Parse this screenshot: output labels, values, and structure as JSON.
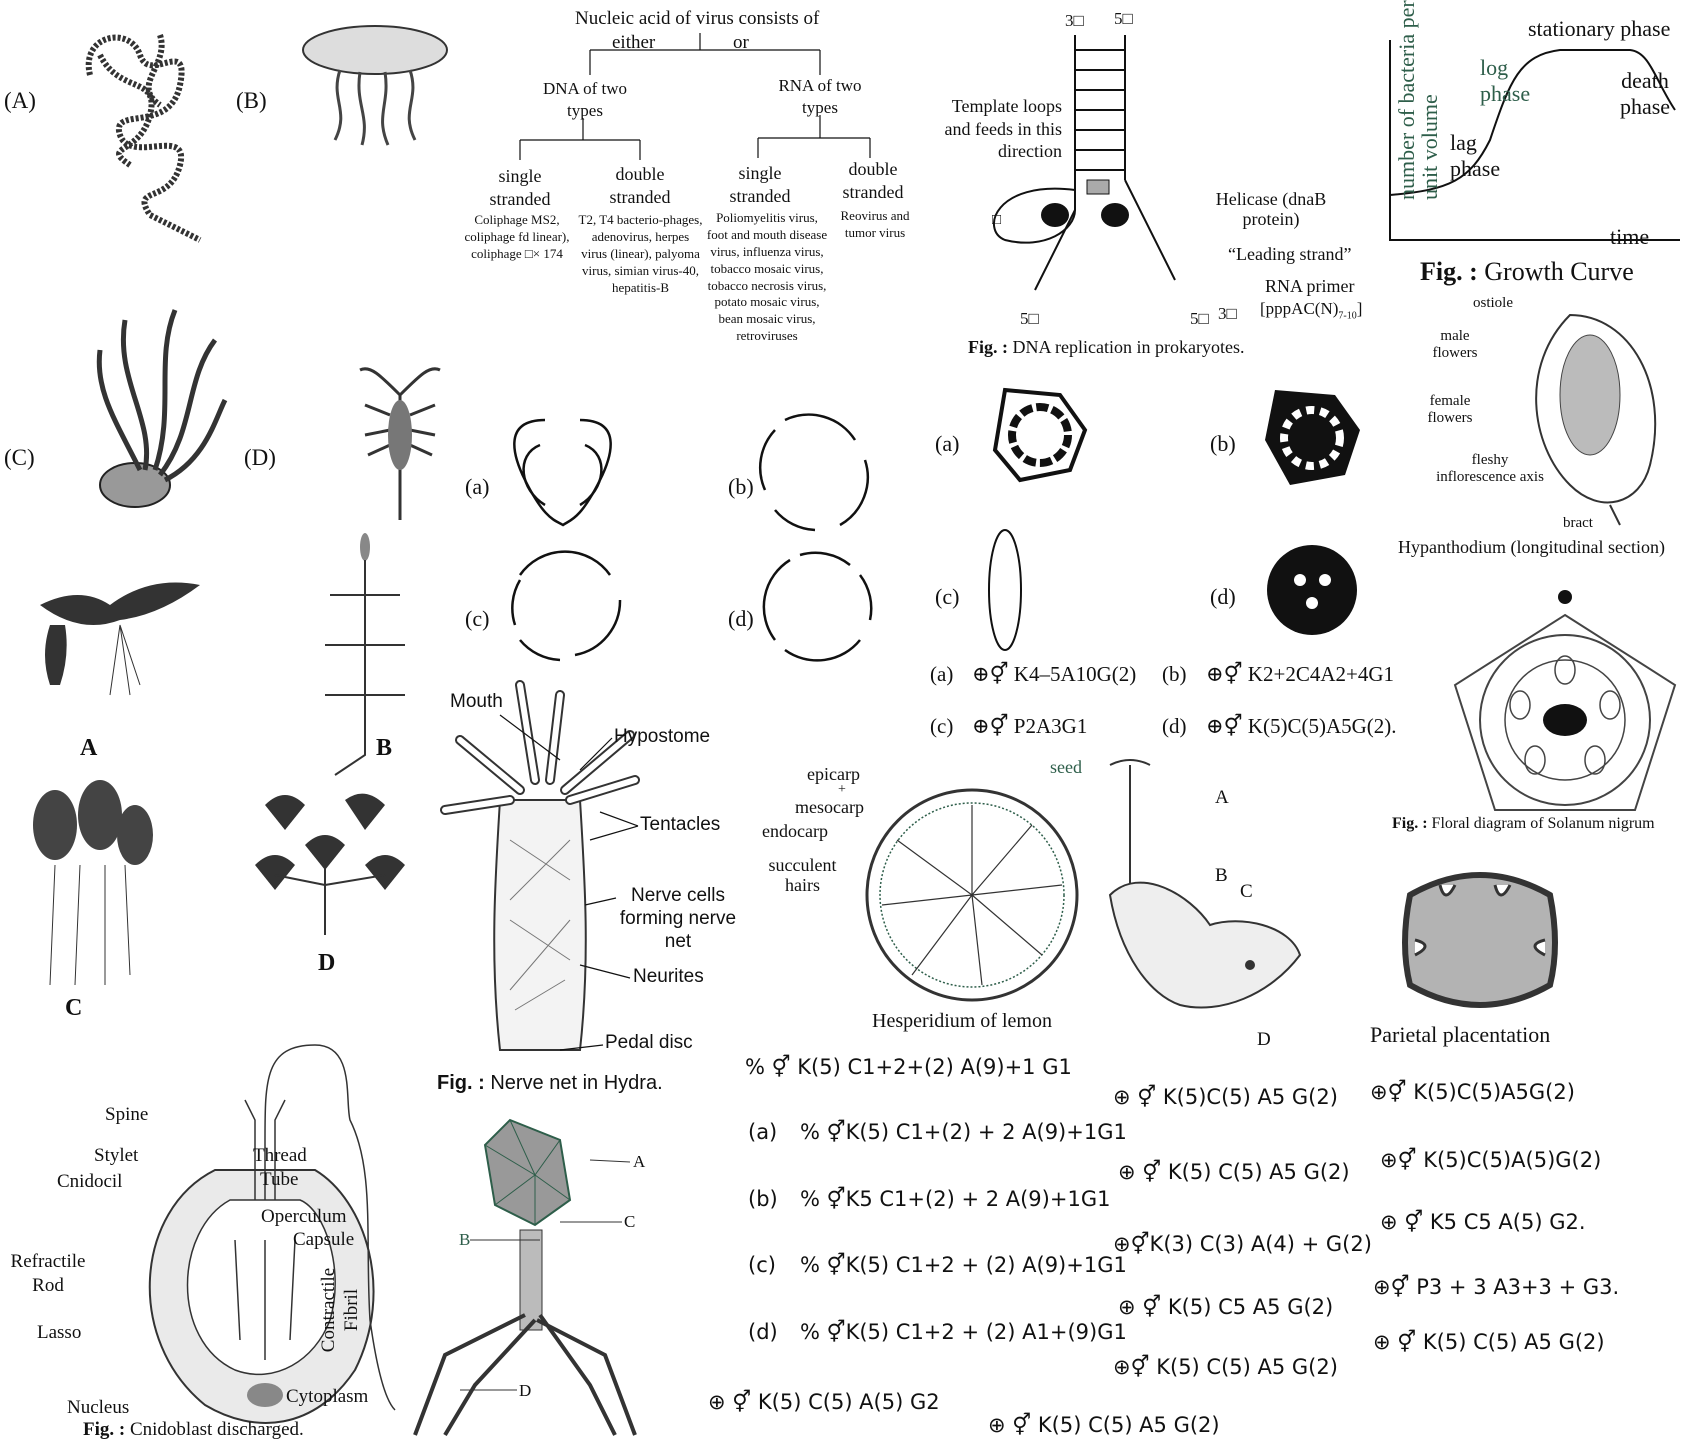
{
  "animals": {
    "label_A": "(A)",
    "label_B": "(B)",
    "label_C": "(C)",
    "label_D": "(D)"
  },
  "plants": {
    "label_A": "A",
    "label_B": "B",
    "label_C": "C",
    "label_D": "D"
  },
  "virus_tree": {
    "root": "Nucleic acid of virus consists of",
    "either": "either",
    "or": "or",
    "dna": "DNA of two types",
    "rna": "RNA of two types",
    "dna_ss": "single stranded",
    "dna_ds": "double stranded",
    "rna_ss": "single stranded",
    "rna_ds": "double stranded",
    "dna_ss_ex": "Coliphage MS2, coliphage fd linear), coliphage □× 174",
    "dna_ds_ex": "T2, T4 bacterio-phages, adenovirus, herpes virus (linear), palyoma virus, simian virus-40, hepatitis-B",
    "rna_ss_ex": "Poliomyelitis virus, foot and mouth disease virus, influenza virus, tobacco mosaic virus, tobacco necrosis virus, potato mosaic virus, bean mosaic virus, retroviruses",
    "rna_ds_ex": "Reovirus and tumor virus"
  },
  "dna_replication": {
    "top_3": "3□",
    "top_5": "5□",
    "template": "Template loops and feeds in this direction",
    "helicase": "Helicase (dnaB protein)",
    "leading": "“Leading strand”",
    "primer": "RNA primer",
    "primer_formula": "[pppAC(N)",
    "primer_sub": "7-10",
    "primer_close": "]",
    "bottom_5a": "5□",
    "bottom_5b": "5□",
    "bottom_3": "3□",
    "box_glyph": "□",
    "caption_bold": "Fig. :",
    "caption": "DNA replication in prokaryotes."
  },
  "growth_curve": {
    "ylabel": "number of bacteria per unit volume",
    "xlabel": "time",
    "lag": "lag phase",
    "log": "log phase",
    "stationary": "stationary phase",
    "death": "death phase",
    "caption_bold": "Fig. :",
    "caption": "Growth Curve"
  },
  "hypanthodium": {
    "ostiole": "ostiole",
    "male": "male flowers",
    "female": "female flowers",
    "axis": "fleshy inflorescence axis",
    "bract": "bract",
    "caption": "Hypanthodium (longitudinal section)"
  },
  "circle_options": {
    "a": "(a)",
    "b": "(b)",
    "c": "(c)",
    "d": "(d)"
  },
  "ovary_options": {
    "a": "(a)",
    "b": "(b)",
    "c": "(c)",
    "d": "(d)"
  },
  "floral_formulas_top": {
    "a_label": "(a)",
    "a": "⊕⚥ K4–5A10G(2)",
    "b_label": "(b)",
    "b": "⊕⚥ K2+2C4A2+4G1",
    "c_label": "(c)",
    "c": "⊕⚥ P2A3G1",
    "d_label": "(d)",
    "d": "⊕⚥ K(5)C(5)A5G(2)."
  },
  "solanum": {
    "caption_bold": "Fig. :",
    "caption": "Floral diagram of Solanum nigrum"
  },
  "hydra": {
    "mouth": "Mouth",
    "hypostome": "Hypostome",
    "tentacles": "Tentacles",
    "nerve_cells": "Nerve cells forming nerve net",
    "neurites": "Neurites",
    "pedal": "Pedal disc",
    "caption_bold": "Fig. :",
    "caption": "Nerve net in Hydra."
  },
  "lemon": {
    "epicarp": "epicarp",
    "plus": "+",
    "mesocarp": "mesocarp",
    "endocarp": "endocarp",
    "succulent": "succulent hairs",
    "seed": "seed",
    "caption": "Hesperidium of lemon"
  },
  "marchantia": {
    "A": "A",
    "B": "B",
    "C": "C",
    "D": "D"
  },
  "placentation": {
    "caption": "Parietal placentation"
  },
  "cnidoblast": {
    "spine": "Spine",
    "stylet": "Stylet",
    "cnidocil": "Cnidocil",
    "thread": "Thread",
    "tube": "Tube",
    "operculum": "Operculum",
    "capsule": "Capsule",
    "refractile": "Refractile Rod",
    "contractile": "Contractile Fibril",
    "lasso": "Lasso",
    "nucleus": "Nucleus",
    "cytoplasm": "Cytoplasm",
    "caption_bold": "Fig. :",
    "caption": "Cnidoblast discharged."
  },
  "phage": {
    "A": "A",
    "B": "B",
    "C": "C",
    "D": "D"
  },
  "formulas_mid": {
    "q": "% ⚥ K(5) C1+2+(2) A(9)+1 G1",
    "a_label": "(a)",
    "a": "% ⚥K(5) C1+(2) + 2 A(9)+1G1",
    "b_label": "(b)",
    "b": "% ⚥K5 C1+(2) + 2 A(9)+1G1",
    "c_label": "(c)",
    "c": "% ⚥K(5) C1+2 + (2) A(9)+1G1",
    "d_label": "(d)",
    "d": "% ⚥K(5) C1+2 + (2) A1+(9)G1",
    "e": "⊕ ⚥ K(5) C(5) A(5) G2"
  },
  "formulas_col2": {
    "f1": "⊕ ⚥ K(5)C(5) A5 G(2)",
    "f2": "⊕ ⚥ K(5) C(5) A5 G(2)",
    "f3": "⊕⚥K(3) C(3) A(4) + G(2)",
    "f4": "⊕ ⚥ K(5) C5 A5 G(2)",
    "f5": "⊕⚥ K(5) C(5) A5 G(2)",
    "f6": "⊕ ⚥ K(5) C(5) A5 G(2)"
  },
  "formulas_col3": {
    "f1": "⊕⚥ K(5)C(5)A5G(2)",
    "f2": "⊕⚥ K(5)C(5)A(5)G(2)",
    "f3": "⊕ ⚥ K5 C5 A(5) G2.",
    "f4": "⊕⚥ P3 + 3 A3+3 + G3.",
    "f5": "⊕ ⚥ K(5) C(5) A5 G(2)"
  }
}
